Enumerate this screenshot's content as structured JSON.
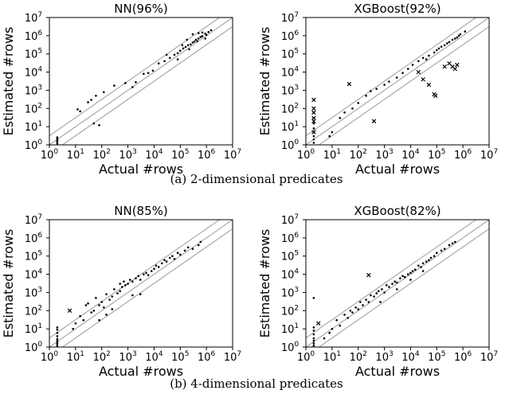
{
  "captions": {
    "a": "(a) 2-dimensional predicates",
    "b": "(b) 4-dimensional predicates"
  },
  "chart_data": [
    {
      "type": "scatter",
      "title": "NN(96%)",
      "xlabel": "Actual #rows",
      "ylabel": "Estimated #rows",
      "scale": "log10",
      "xlim": [
        1,
        10000000
      ],
      "ylim": [
        1,
        10000000
      ],
      "ticks": [
        "10^0",
        "10^1",
        "10^2",
        "10^3",
        "10^4",
        "10^5",
        "10^6",
        "10^7"
      ],
      "reference_lines": "y = x with parallel lines above and below",
      "grid": false,
      "points": [
        [
          2,
          1.2
        ],
        [
          2,
          1.5
        ],
        [
          2,
          1.8
        ],
        [
          2,
          2.2
        ],
        [
          2,
          2.6
        ],
        [
          12,
          90
        ],
        [
          15,
          70
        ],
        [
          30,
          220
        ],
        [
          40,
          300
        ],
        [
          60,
          500
        ],
        [
          80,
          12
        ],
        [
          50,
          15
        ],
        [
          120,
          800
        ],
        [
          300,
          1800
        ],
        [
          800,
          2500
        ],
        [
          1500,
          1500
        ],
        [
          2000,
          2800
        ],
        [
          4000,
          8000
        ],
        [
          6000,
          9000
        ],
        [
          9000,
          12000
        ],
        [
          15000,
          30000
        ],
        [
          25000,
          40000
        ],
        [
          40000,
          60000
        ],
        [
          60000,
          90000
        ],
        [
          80000,
          110000
        ],
        [
          100000,
          150000
        ],
        [
          130000,
          200000
        ],
        [
          160000,
          240000
        ],
        [
          200000,
          300000
        ],
        [
          250000,
          330000
        ],
        [
          300000,
          420000
        ],
        [
          350000,
          480000
        ],
        [
          400000,
          600000
        ],
        [
          500000,
          700000
        ],
        [
          600000,
          850000
        ],
        [
          700000,
          950000
        ],
        [
          900000,
          1300000
        ],
        [
          1200000,
          1600000
        ],
        [
          1500000,
          2000000
        ],
        [
          300000,
          1200000
        ],
        [
          500000,
          1400000
        ],
        [
          220000,
          180000
        ],
        [
          180000,
          600000
        ],
        [
          700000,
          1500000
        ],
        [
          1000000,
          1100000
        ],
        [
          450000,
          500000
        ],
        [
          80000,
          50000
        ],
        [
          120000,
          300000
        ],
        [
          30000,
          90000
        ],
        [
          900000,
          700000
        ]
      ],
      "cross_points": []
    },
    {
      "type": "scatter",
      "title": "XGBoost(92%)",
      "xlabel": "Actual #rows",
      "ylabel": "Estimated #rows",
      "scale": "log10",
      "xlim": [
        1,
        10000000
      ],
      "ylim": [
        1,
        10000000
      ],
      "ticks": [
        "10^0",
        "10^1",
        "10^2",
        "10^3",
        "10^4",
        "10^5",
        "10^6",
        "10^7"
      ],
      "reference_lines": "y = x with parallel lines above and below",
      "grid": false,
      "points": [
        [
          2,
          1.3
        ],
        [
          2,
          2
        ],
        [
          2,
          3
        ],
        [
          2,
          5
        ],
        [
          2,
          8
        ],
        [
          2,
          15
        ],
        [
          2,
          30
        ],
        [
          2,
          60
        ],
        [
          8,
          3
        ],
        [
          10,
          5
        ],
        [
          20,
          30
        ],
        [
          30,
          60
        ],
        [
          60,
          100
        ],
        [
          100,
          200
        ],
        [
          200,
          500
        ],
        [
          300,
          900
        ],
        [
          500,
          1200
        ],
        [
          1000,
          2000
        ],
        [
          1500,
          3000
        ],
        [
          3000,
          5000
        ],
        [
          5000,
          9000
        ],
        [
          8000,
          15000
        ],
        [
          12000,
          25000
        ],
        [
          20000,
          40000
        ],
        [
          30000,
          60000
        ],
        [
          50000,
          80000
        ],
        [
          80000,
          120000
        ],
        [
          100000,
          160000
        ],
        [
          150000,
          250000
        ],
        [
          200000,
          300000
        ],
        [
          300000,
          450000
        ],
        [
          400000,
          600000
        ],
        [
          600000,
          800000
        ],
        [
          800000,
          1200000
        ],
        [
          1200000,
          1700000
        ],
        [
          500000,
          700000
        ],
        [
          700000,
          1000000
        ],
        [
          250000,
          380000
        ],
        [
          120000,
          200000
        ],
        [
          40000,
          50000
        ]
      ],
      "cross_points": [
        [
          2,
          300
        ],
        [
          2,
          100
        ],
        [
          2,
          60
        ],
        [
          2,
          30
        ],
        [
          2,
          20
        ],
        [
          2,
          5
        ],
        [
          45,
          2200
        ],
        [
          400,
          20
        ],
        [
          20000,
          10000
        ],
        [
          30000,
          4000
        ],
        [
          50000,
          2000
        ],
        [
          80000,
          600
        ],
        [
          90000,
          500
        ],
        [
          200000,
          20000
        ],
        [
          300000,
          30000
        ],
        [
          400000,
          20000
        ],
        [
          500000,
          15000
        ],
        [
          600000,
          25000
        ]
      ]
    },
    {
      "type": "scatter",
      "title": "NN(85%)",
      "xlabel": "Actual #rows",
      "ylabel": "Estimated #rows",
      "scale": "log10",
      "xlim": [
        1,
        10000000
      ],
      "ylim": [
        1,
        10000000
      ],
      "ticks": [
        "10^0",
        "10^1",
        "10^2",
        "10^3",
        "10^4",
        "10^5",
        "10^6",
        "10^7"
      ],
      "reference_lines": "y = x with parallel lines above and below",
      "grid": false,
      "points": [
        [
          2,
          1.2
        ],
        [
          2,
          1.5
        ],
        [
          2,
          1.8
        ],
        [
          2,
          2.2
        ],
        [
          2,
          2.8
        ],
        [
          2,
          4
        ],
        [
          2,
          6
        ],
        [
          2,
          9
        ],
        [
          2,
          12
        ],
        [
          8,
          10
        ],
        [
          10,
          20
        ],
        [
          15,
          50
        ],
        [
          20,
          30
        ],
        [
          25,
          200
        ],
        [
          30,
          250
        ],
        [
          40,
          80
        ],
        [
          50,
          100
        ],
        [
          60,
          500
        ],
        [
          80,
          200
        ],
        [
          100,
          300
        ],
        [
          120,
          150
        ],
        [
          150,
          800
        ],
        [
          200,
          400
        ],
        [
          250,
          600
        ],
        [
          300,
          1500
        ],
        [
          400,
          900
        ],
        [
          500,
          1200
        ],
        [
          600,
          2000
        ],
        [
          700,
          4000
        ],
        [
          800,
          2500
        ],
        [
          1000,
          3000
        ],
        [
          1200,
          5000
        ],
        [
          1500,
          4000
        ],
        [
          2000,
          6000
        ],
        [
          2500,
          8000
        ],
        [
          3000,
          5000
        ],
        [
          4000,
          10000
        ],
        [
          5000,
          12000
        ],
        [
          6000,
          9000
        ],
        [
          8000,
          15000
        ],
        [
          10000,
          20000
        ],
        [
          12000,
          30000
        ],
        [
          15000,
          25000
        ],
        [
          20000,
          40000
        ],
        [
          25000,
          60000
        ],
        [
          30000,
          50000
        ],
        [
          40000,
          80000
        ],
        [
          50000,
          100000
        ],
        [
          60000,
          70000
        ],
        [
          80000,
          150000
        ],
        [
          100000,
          120000
        ],
        [
          150000,
          200000
        ],
        [
          200000,
          300000
        ],
        [
          300000,
          250000
        ],
        [
          500000,
          400000
        ],
        [
          600000,
          600000
        ],
        [
          3000,
          800
        ],
        [
          1500,
          700
        ],
        [
          500,
          3000
        ],
        [
          250,
          120
        ],
        [
          150,
          60
        ],
        [
          80,
          30
        ]
      ],
      "cross_points": [
        [
          6,
          100
        ]
      ]
    },
    {
      "type": "scatter",
      "title": "XGBoost(82%)",
      "xlabel": "Actual #rows",
      "ylabel": "Estimated #rows",
      "scale": "log10",
      "xlim": [
        1,
        10000000
      ],
      "ylim": [
        1,
        10000000
      ],
      "ticks": [
        "10^0",
        "10^1",
        "10^2",
        "10^3",
        "10^4",
        "10^5",
        "10^6",
        "10^7"
      ],
      "reference_lines": "y = x with parallel lines above and below",
      "grid": false,
      "points": [
        [
          2,
          1.2
        ],
        [
          2,
          1.6
        ],
        [
          2,
          2.2
        ],
        [
          2,
          3
        ],
        [
          2,
          5
        ],
        [
          2,
          8
        ],
        [
          2,
          12
        ],
        [
          2,
          500
        ],
        [
          5,
          3
        ],
        [
          8,
          6
        ],
        [
          10,
          10
        ],
        [
          15,
          30
        ],
        [
          20,
          15
        ],
        [
          30,
          60
        ],
        [
          40,
          40
        ],
        [
          50,
          100
        ],
        [
          60,
          80
        ],
        [
          80,
          150
        ],
        [
          100,
          120
        ],
        [
          120,
          300
        ],
        [
          150,
          200
        ],
        [
          200,
          400
        ],
        [
          250,
          300
        ],
        [
          300,
          700
        ],
        [
          400,
          600
        ],
        [
          500,
          900
        ],
        [
          600,
          1200
        ],
        [
          800,
          1500
        ],
        [
          1000,
          1000
        ],
        [
          1200,
          2500
        ],
        [
          1500,
          2000
        ],
        [
          2000,
          3000
        ],
        [
          2500,
          4000
        ],
        [
          3000,
          3500
        ],
        [
          4000,
          6000
        ],
        [
          5000,
          8000
        ],
        [
          6000,
          7000
        ],
        [
          8000,
          10000
        ],
        [
          10000,
          12000
        ],
        [
          12000,
          15000
        ],
        [
          15000,
          18000
        ],
        [
          20000,
          30000
        ],
        [
          25000,
          25000
        ],
        [
          30000,
          40000
        ],
        [
          40000,
          50000
        ],
        [
          50000,
          60000
        ],
        [
          60000,
          80000
        ],
        [
          80000,
          100000
        ],
        [
          100000,
          150000
        ],
        [
          150000,
          200000
        ],
        [
          200000,
          250000
        ],
        [
          300000,
          400000
        ],
        [
          400000,
          500000
        ],
        [
          500000,
          600000
        ],
        [
          700,
          300
        ],
        [
          3000,
          1500
        ],
        [
          10000,
          5000
        ],
        [
          30000,
          15000
        ]
      ],
      "cross_points": [
        [
          250,
          9000
        ],
        [
          3,
          20
        ]
      ]
    }
  ]
}
